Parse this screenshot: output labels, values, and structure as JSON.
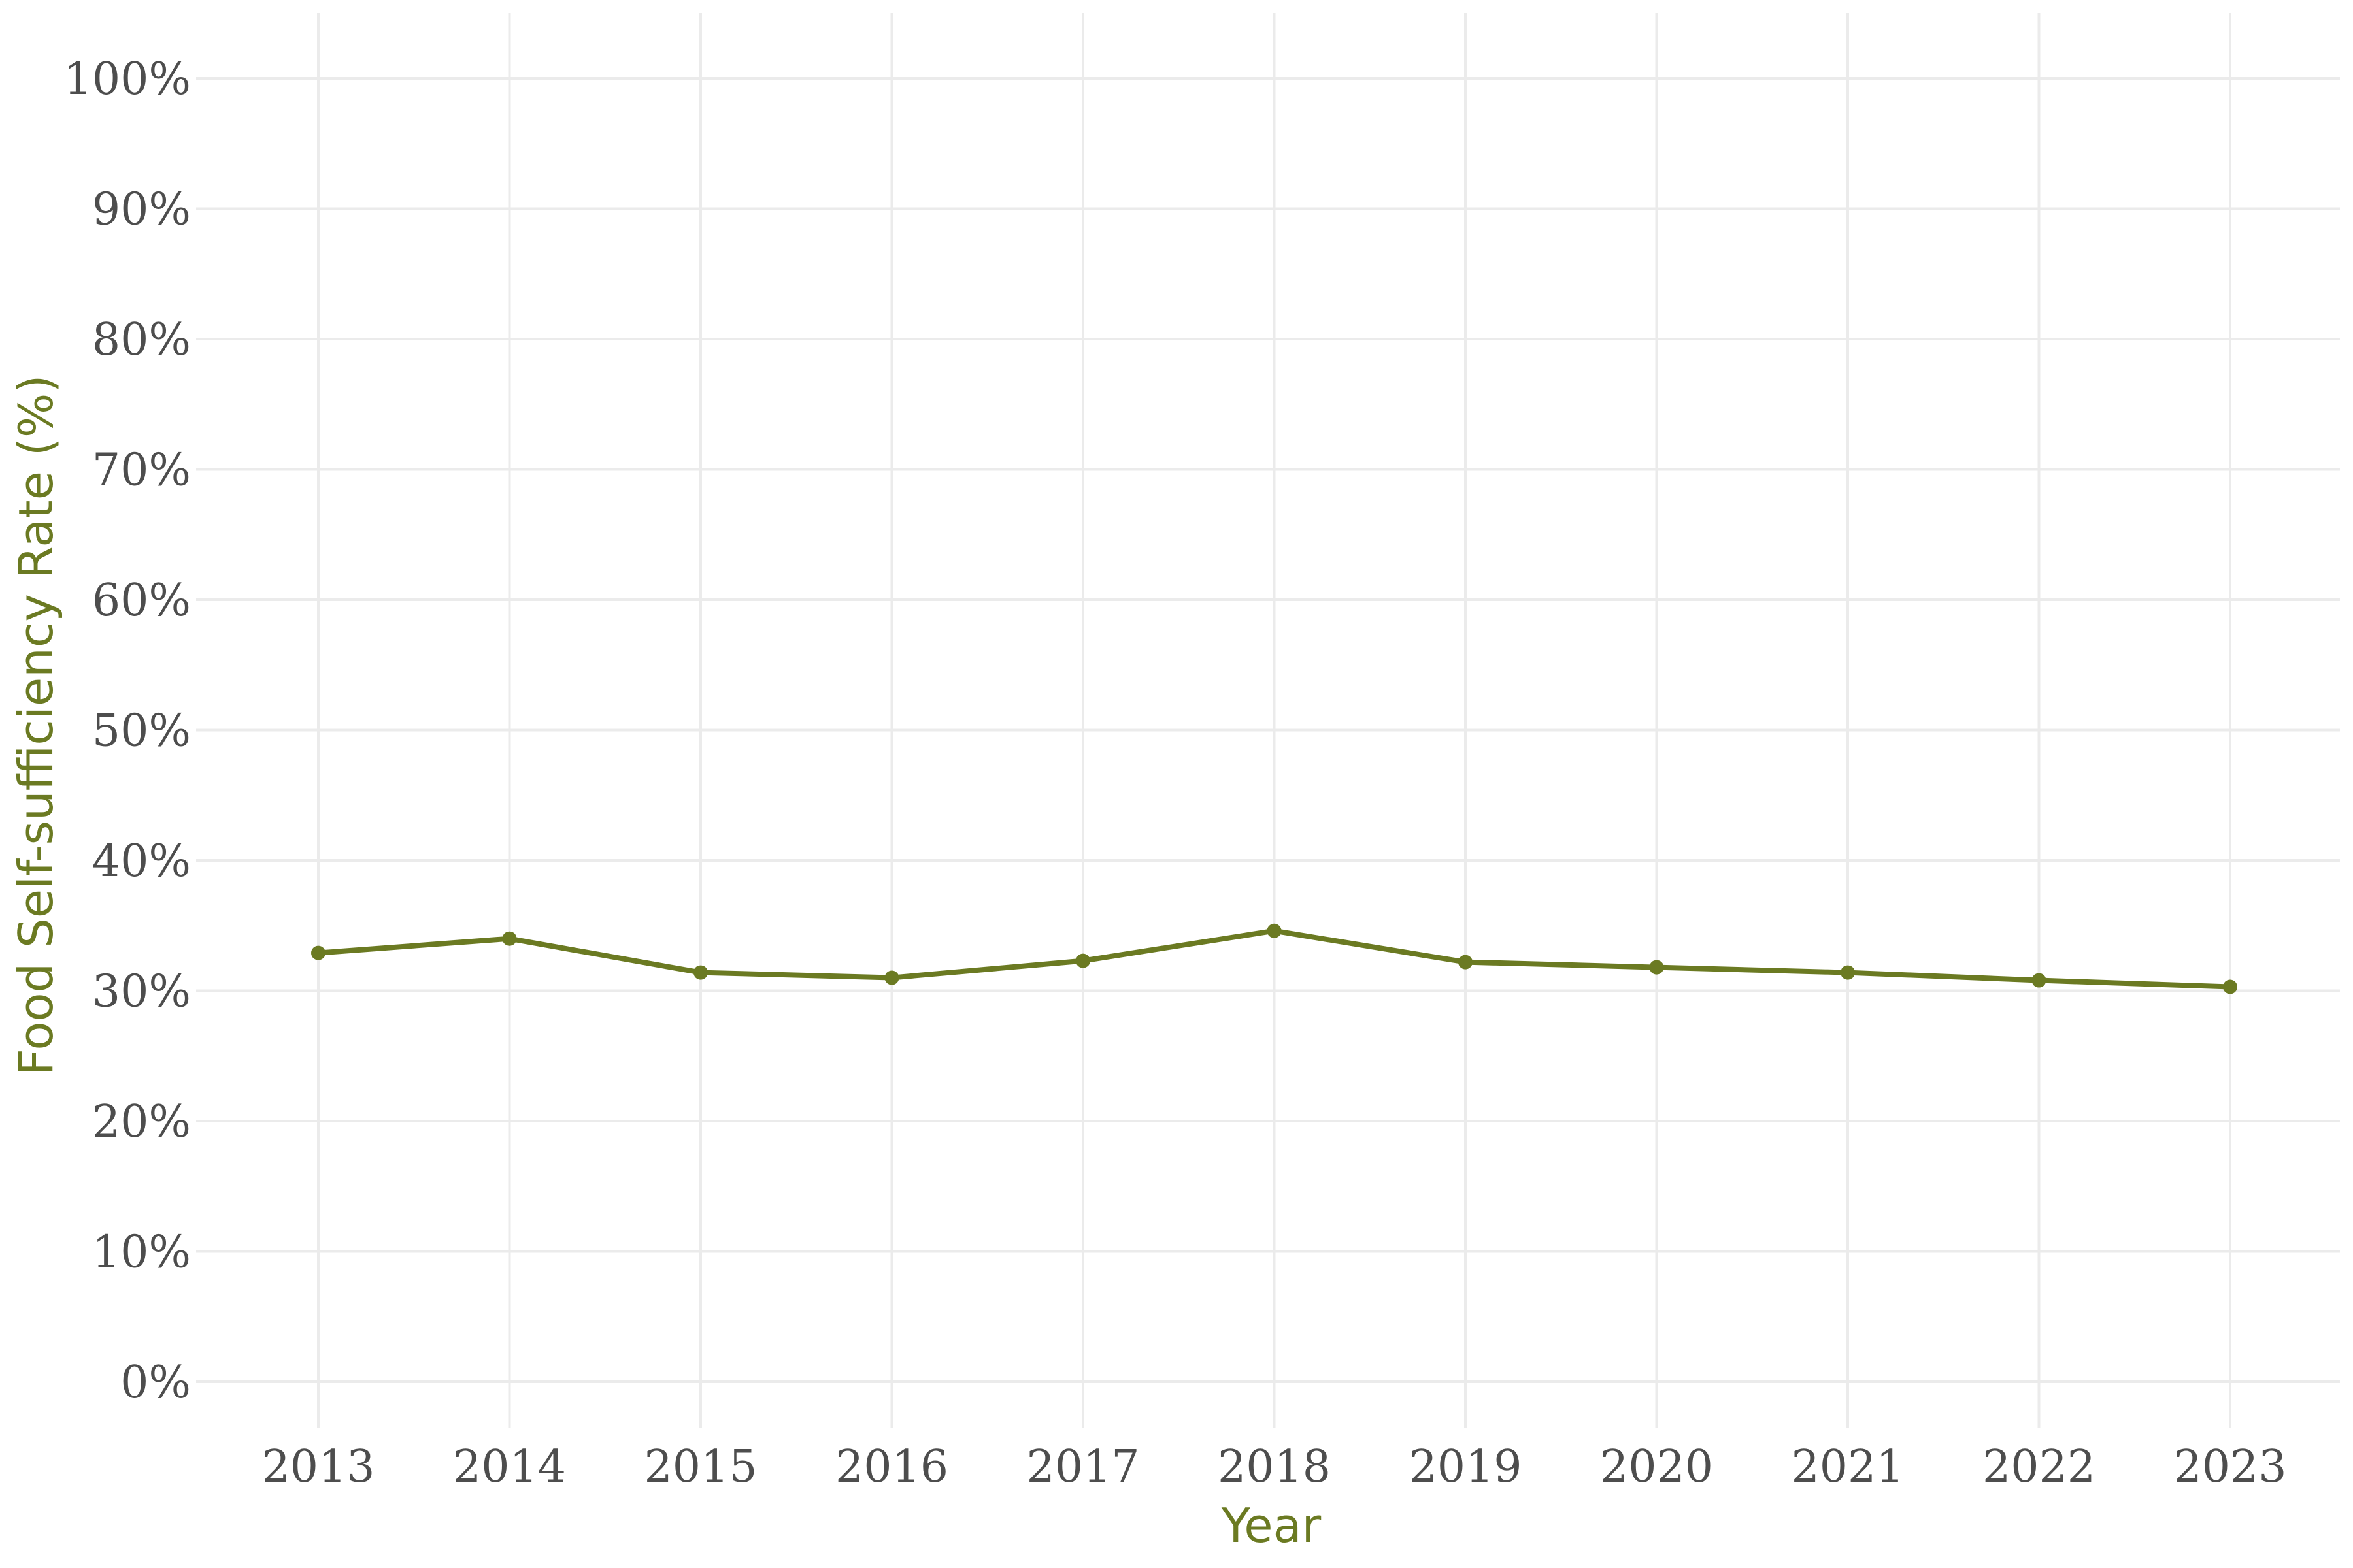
{
  "chart_data": {
    "type": "line",
    "xlabel": "Year",
    "ylabel": "Food Self-sufficiency Rate (%)",
    "categories": [
      "2013",
      "2014",
      "2015",
      "2016",
      "2017",
      "2018",
      "2019",
      "2020",
      "2021",
      "2022",
      "2023"
    ],
    "series": [
      {
        "values": [
          32.9,
          34.0,
          31.4,
          31.0,
          32.3,
          34.6,
          32.2,
          31.8,
          31.4,
          30.8,
          30.3
        ],
        "color": "#6b7a22"
      }
    ],
    "ylim": [
      0,
      100
    ],
    "yticks": [
      0,
      10,
      20,
      30,
      40,
      50,
      60,
      70,
      80,
      90,
      100
    ],
    "ytick_labels": [
      "0%",
      "10%",
      "20%",
      "30%",
      "40%",
      "50%",
      "60%",
      "70%",
      "80%",
      "90%",
      "100%"
    ],
    "grid": true,
    "legend": "none",
    "colors": {
      "accent": "#6b7a22",
      "grid": "#ebebeb",
      "tick_text": "#4d4d4d",
      "background": "#ffffff"
    }
  }
}
